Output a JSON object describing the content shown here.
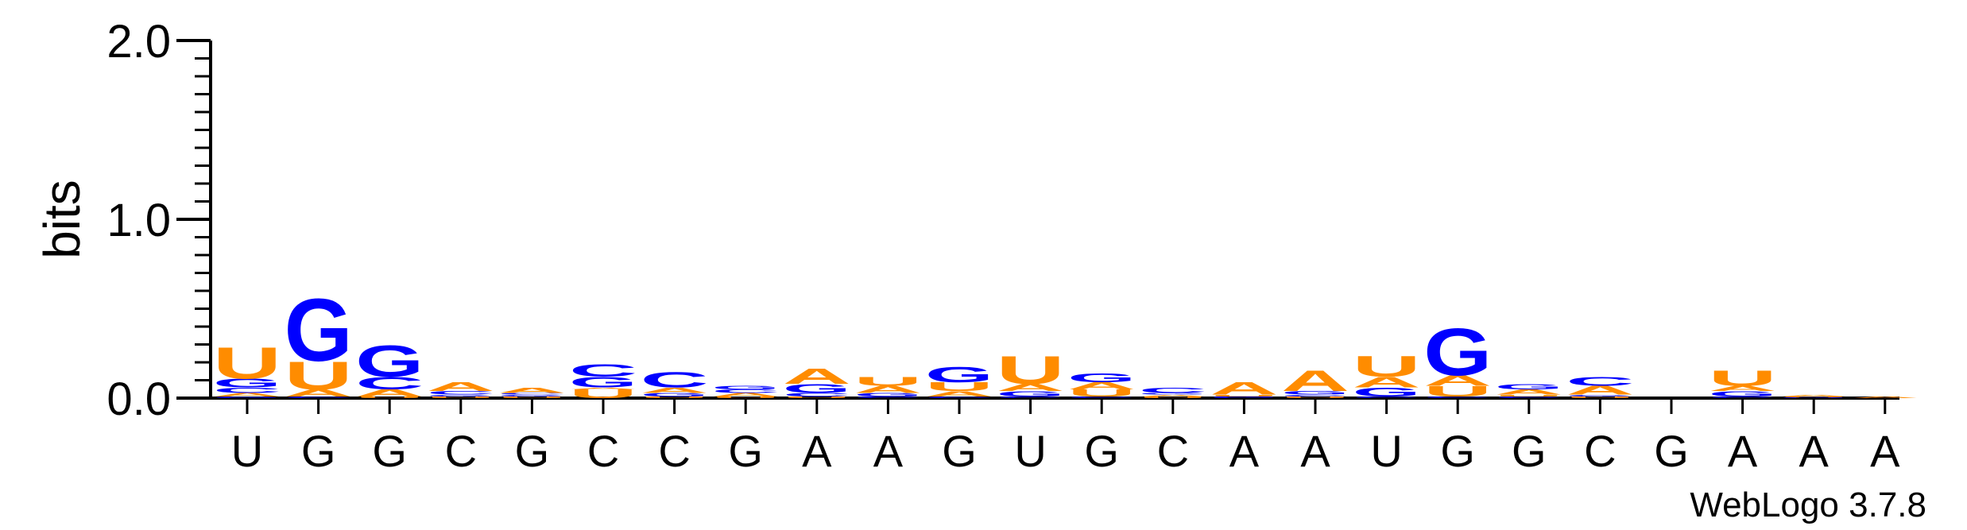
{
  "colors": {
    "A": "#FF8C00",
    "U": "#FF8C00",
    "G": "#0000FF",
    "C": "#0000FF",
    "axis": "#000000"
  },
  "chart_data": {
    "type": "sequence-logo",
    "title": "",
    "ylabel": "bits",
    "ylim": [
      0,
      2.0
    ],
    "yticks": [
      "0.0",
      "1.0",
      "2.0"
    ],
    "xlabels": [
      "U",
      "G",
      "G",
      "C",
      "G",
      "C",
      "C",
      "G",
      "A",
      "A",
      "G",
      "U",
      "G",
      "C",
      "A",
      "A",
      "U",
      "G",
      "G",
      "C",
      "G",
      "A",
      "A",
      "A"
    ],
    "credit": "WebLogo 3.7.8",
    "columns": [
      {
        "pos": 1,
        "letters": [
          {
            "c": "G",
            "h": 0.01
          },
          {
            "c": "A",
            "h": 0.02
          },
          {
            "c": "C",
            "h": 0.03
          },
          {
            "c": "G",
            "h": 0.05
          },
          {
            "c": "U",
            "h": 0.18
          }
        ]
      },
      {
        "pos": 2,
        "letters": [
          {
            "c": "C",
            "h": 0.01
          },
          {
            "c": "A",
            "h": 0.04
          },
          {
            "c": "U",
            "h": 0.16
          },
          {
            "c": "G",
            "h": 0.36
          }
        ]
      },
      {
        "pos": 3,
        "letters": [
          {
            "c": "U",
            "h": 0.01
          },
          {
            "c": "A",
            "h": 0.04
          },
          {
            "c": "C",
            "h": 0.07
          },
          {
            "c": "G",
            "h": 0.18
          }
        ]
      },
      {
        "pos": 4,
        "letters": [
          {
            "c": "U",
            "h": 0.01
          },
          {
            "c": "G",
            "h": 0.01
          },
          {
            "c": "C",
            "h": 0.02
          },
          {
            "c": "A",
            "h": 0.05
          }
        ]
      },
      {
        "pos": 5,
        "letters": [
          {
            "c": "U",
            "h": 0.01
          },
          {
            "c": "G",
            "h": 0.01
          },
          {
            "c": "C",
            "h": 0.01
          },
          {
            "c": "A",
            "h": 0.03
          }
        ]
      },
      {
        "pos": 6,
        "letters": [
          {
            "c": "U",
            "h": 0.05
          },
          {
            "c": "A",
            "h": 0.01
          },
          {
            "c": "G",
            "h": 0.06
          },
          {
            "c": "C",
            "h": 0.07
          }
        ]
      },
      {
        "pos": 7,
        "letters": [
          {
            "c": "U",
            "h": 0.01
          },
          {
            "c": "G",
            "h": 0.02
          },
          {
            "c": "A",
            "h": 0.03
          },
          {
            "c": "C",
            "h": 0.09
          }
        ]
      },
      {
        "pos": 8,
        "letters": [
          {
            "c": "U",
            "h": 0.01
          },
          {
            "c": "A",
            "h": 0.02
          },
          {
            "c": "C",
            "h": 0.02
          },
          {
            "c": "G",
            "h": 0.02
          }
        ]
      },
      {
        "pos": 9,
        "letters": [
          {
            "c": "U",
            "h": 0.01
          },
          {
            "c": "C",
            "h": 0.02
          },
          {
            "c": "G",
            "h": 0.05
          },
          {
            "c": "A",
            "h": 0.09
          }
        ]
      },
      {
        "pos": 10,
        "letters": [
          {
            "c": "C",
            "h": 0.01
          },
          {
            "c": "G",
            "h": 0.02
          },
          {
            "c": "A",
            "h": 0.04
          },
          {
            "c": "U",
            "h": 0.05
          }
        ]
      },
      {
        "pos": 11,
        "letters": [
          {
            "c": "C",
            "h": 0.01
          },
          {
            "c": "A",
            "h": 0.03
          },
          {
            "c": "U",
            "h": 0.05
          },
          {
            "c": "G",
            "h": 0.09
          }
        ]
      },
      {
        "pos": 12,
        "letters": [
          {
            "c": "C",
            "h": 0.01
          },
          {
            "c": "G",
            "h": 0.03
          },
          {
            "c": "A",
            "h": 0.04
          },
          {
            "c": "U",
            "h": 0.16
          }
        ]
      },
      {
        "pos": 13,
        "letters": [
          {
            "c": "C",
            "h": 0.01
          },
          {
            "c": "U",
            "h": 0.04
          },
          {
            "c": "A",
            "h": 0.04
          },
          {
            "c": "G",
            "h": 0.05
          }
        ]
      },
      {
        "pos": 14,
        "letters": [
          {
            "c": "U",
            "h": 0.01
          },
          {
            "c": "A",
            "h": 0.01
          },
          {
            "c": "G",
            "h": 0.01
          },
          {
            "c": "C",
            "h": 0.03
          }
        ]
      },
      {
        "pos": 15,
        "letters": [
          {
            "c": "C",
            "h": 0.005
          },
          {
            "c": "G",
            "h": 0.005
          },
          {
            "c": "U",
            "h": 0.01
          },
          {
            "c": "A",
            "h": 0.07
          }
        ]
      },
      {
        "pos": 16,
        "letters": [
          {
            "c": "U",
            "h": 0.01
          },
          {
            "c": "C",
            "h": 0.01
          },
          {
            "c": "G",
            "h": 0.02
          },
          {
            "c": "A",
            "h": 0.12
          }
        ]
      },
      {
        "pos": 17,
        "letters": [
          {
            "c": "C",
            "h": 0.01
          },
          {
            "c": "G",
            "h": 0.05
          },
          {
            "c": "A",
            "h": 0.06
          },
          {
            "c": "U",
            "h": 0.12
          }
        ]
      },
      {
        "pos": 18,
        "letters": [
          {
            "c": "C",
            "h": 0.01
          },
          {
            "c": "U",
            "h": 0.06
          },
          {
            "c": "A",
            "h": 0.06
          },
          {
            "c": "G",
            "h": 0.27
          }
        ]
      },
      {
        "pos": 19,
        "letters": [
          {
            "c": "C",
            "h": 0.01
          },
          {
            "c": "U",
            "h": 0.01
          },
          {
            "c": "A",
            "h": 0.03
          },
          {
            "c": "G",
            "h": 0.03
          }
        ]
      },
      {
        "pos": 20,
        "letters": [
          {
            "c": "U",
            "h": 0.01
          },
          {
            "c": "G",
            "h": 0.01
          },
          {
            "c": "A",
            "h": 0.05
          },
          {
            "c": "C",
            "h": 0.05
          }
        ]
      },
      {
        "pos": 21,
        "letters": []
      },
      {
        "pos": 22,
        "letters": [
          {
            "c": "C",
            "h": 0.01
          },
          {
            "c": "G",
            "h": 0.03
          },
          {
            "c": "A",
            "h": 0.03
          },
          {
            "c": "U",
            "h": 0.09
          }
        ]
      },
      {
        "pos": 23,
        "letters": [
          {
            "c": "G",
            "h": 0.005
          },
          {
            "c": "U",
            "h": 0.005
          },
          {
            "c": "A",
            "h": 0.01
          }
        ]
      },
      {
        "pos": 24,
        "letters": [
          {
            "c": "A",
            "h": 0.01
          }
        ]
      }
    ]
  }
}
